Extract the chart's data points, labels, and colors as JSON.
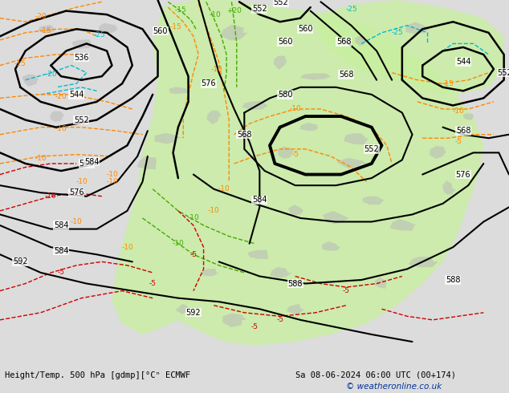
{
  "title_bottom_left": "Height/Temp. 500 hPa [gdmp][°Cⁿ ECMWF",
  "title_bottom_right": "Sa 08-06-2024 06:00 UTC (00+174)",
  "watermark": "© weatheronline.co.uk",
  "bg_color": "#dcdcdc",
  "map_bg": "#e8e8e8",
  "green_fill": "#c8f0a0",
  "gray_land": "#b8b8b8",
  "z500_color": "#000000",
  "temp_orange": "#ff8800",
  "temp_cyan": "#00bbcc",
  "temp_green": "#44aa00",
  "temp_red": "#cc0000",
  "watermark_color": "#003399",
  "figsize": [
    6.34,
    4.9
  ],
  "dpi": 100
}
